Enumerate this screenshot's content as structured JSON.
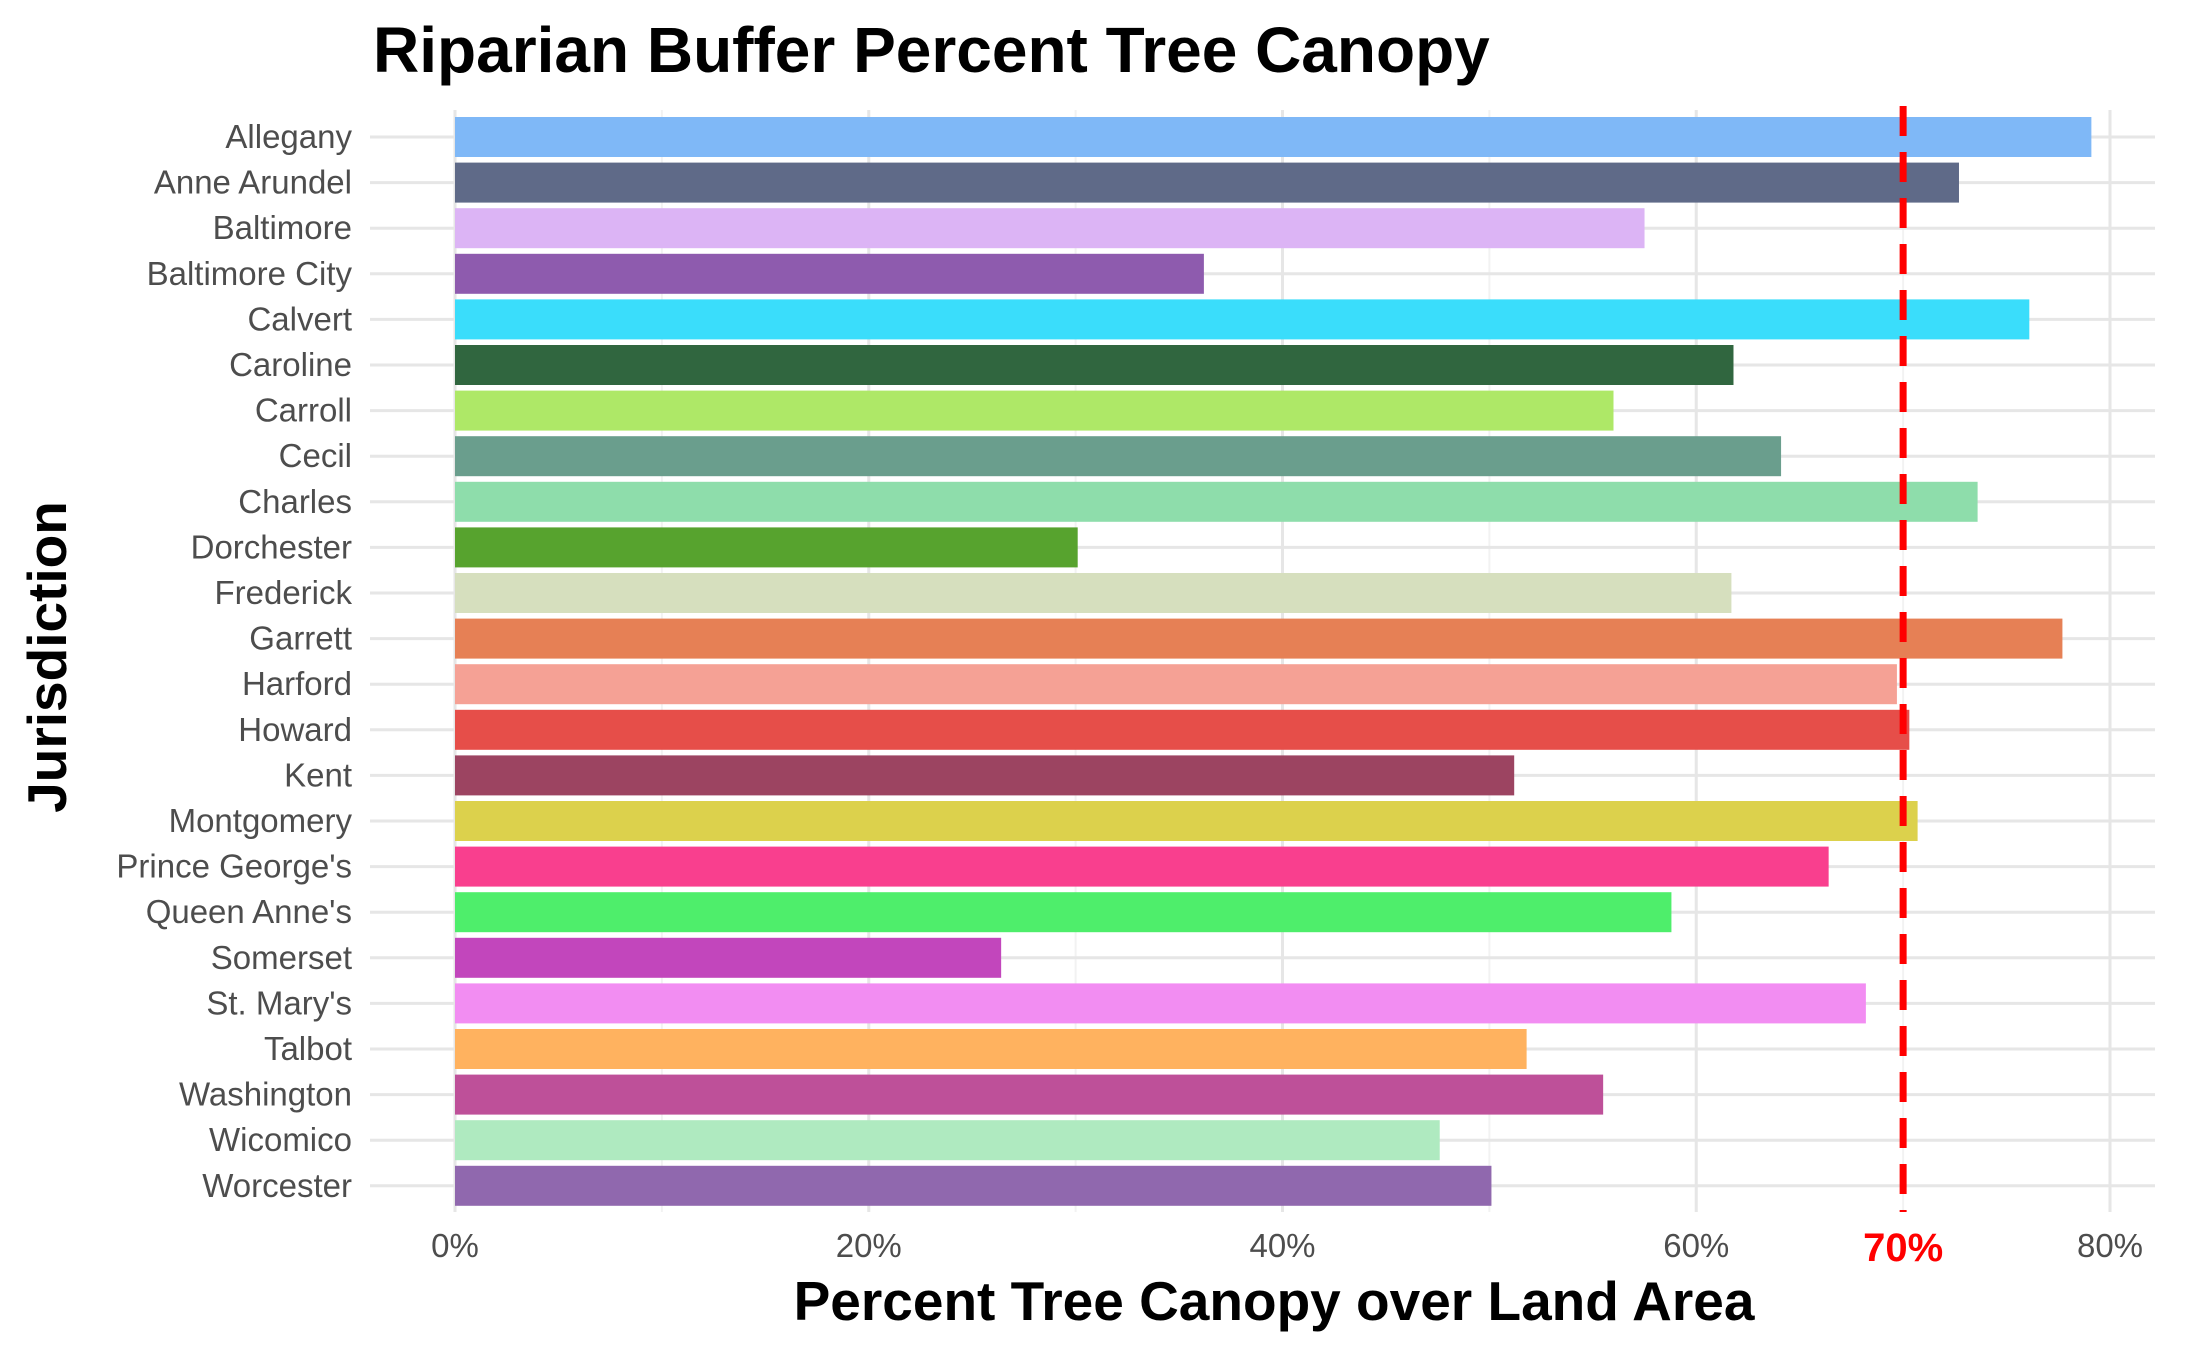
{
  "chart_data": {
    "type": "bar",
    "orientation": "horizontal",
    "title": "Riparian Buffer Percent Tree Canopy",
    "xlabel": "Percent Tree Canopy over Land Area",
    "ylabel": "Jurisdiction",
    "xlim": [
      0,
      0.8
    ],
    "grid": true,
    "x_ticks": [
      {
        "value": 0,
        "label": "0%"
      },
      {
        "value": 0.2,
        "label": "20%"
      },
      {
        "value": 0.4,
        "label": "40%"
      },
      {
        "value": 0.6,
        "label": "60%"
      },
      {
        "value": 0.8,
        "label": "80%"
      }
    ],
    "reference_line": {
      "value": 0.7,
      "label": "70%",
      "color": "#ff0000",
      "style": "dashed"
    },
    "categories": [
      "Allegany",
      "Anne Arundel",
      "Baltimore",
      "Baltimore City",
      "Calvert",
      "Caroline",
      "Carroll",
      "Cecil",
      "Charles",
      "Dorchester",
      "Frederick",
      "Garrett",
      "Harford",
      "Howard",
      "Kent",
      "Montgomery",
      "Prince George's",
      "Queen Anne's",
      "Somerset",
      "St. Mary's",
      "Talbot",
      "Washington",
      "Wicomico",
      "Worcester"
    ],
    "values": [
      0.791,
      0.727,
      0.575,
      0.362,
      0.761,
      0.618,
      0.56,
      0.641,
      0.736,
      0.301,
      0.617,
      0.777,
      0.697,
      0.703,
      0.512,
      0.707,
      0.664,
      0.588,
      0.264,
      0.682,
      0.518,
      0.555,
      0.476,
      0.501
    ],
    "colors": [
      "#7FB8F7",
      "#5F6A88",
      "#DCB4F5",
      "#8E5BAE",
      "#3ADDFB",
      "#30663F",
      "#AEE867",
      "#6A9E8D",
      "#8EDDAB",
      "#57A32E",
      "#D6DFBE",
      "#E68055",
      "#F5A195",
      "#E64E49",
      "#9C4461",
      "#DCD14C",
      "#F93F8E",
      "#4EEE6B",
      "#C246BC",
      "#F28DF2",
      "#FFB25F",
      "#BE5099",
      "#AFEAC0",
      "#9068AE"
    ]
  }
}
